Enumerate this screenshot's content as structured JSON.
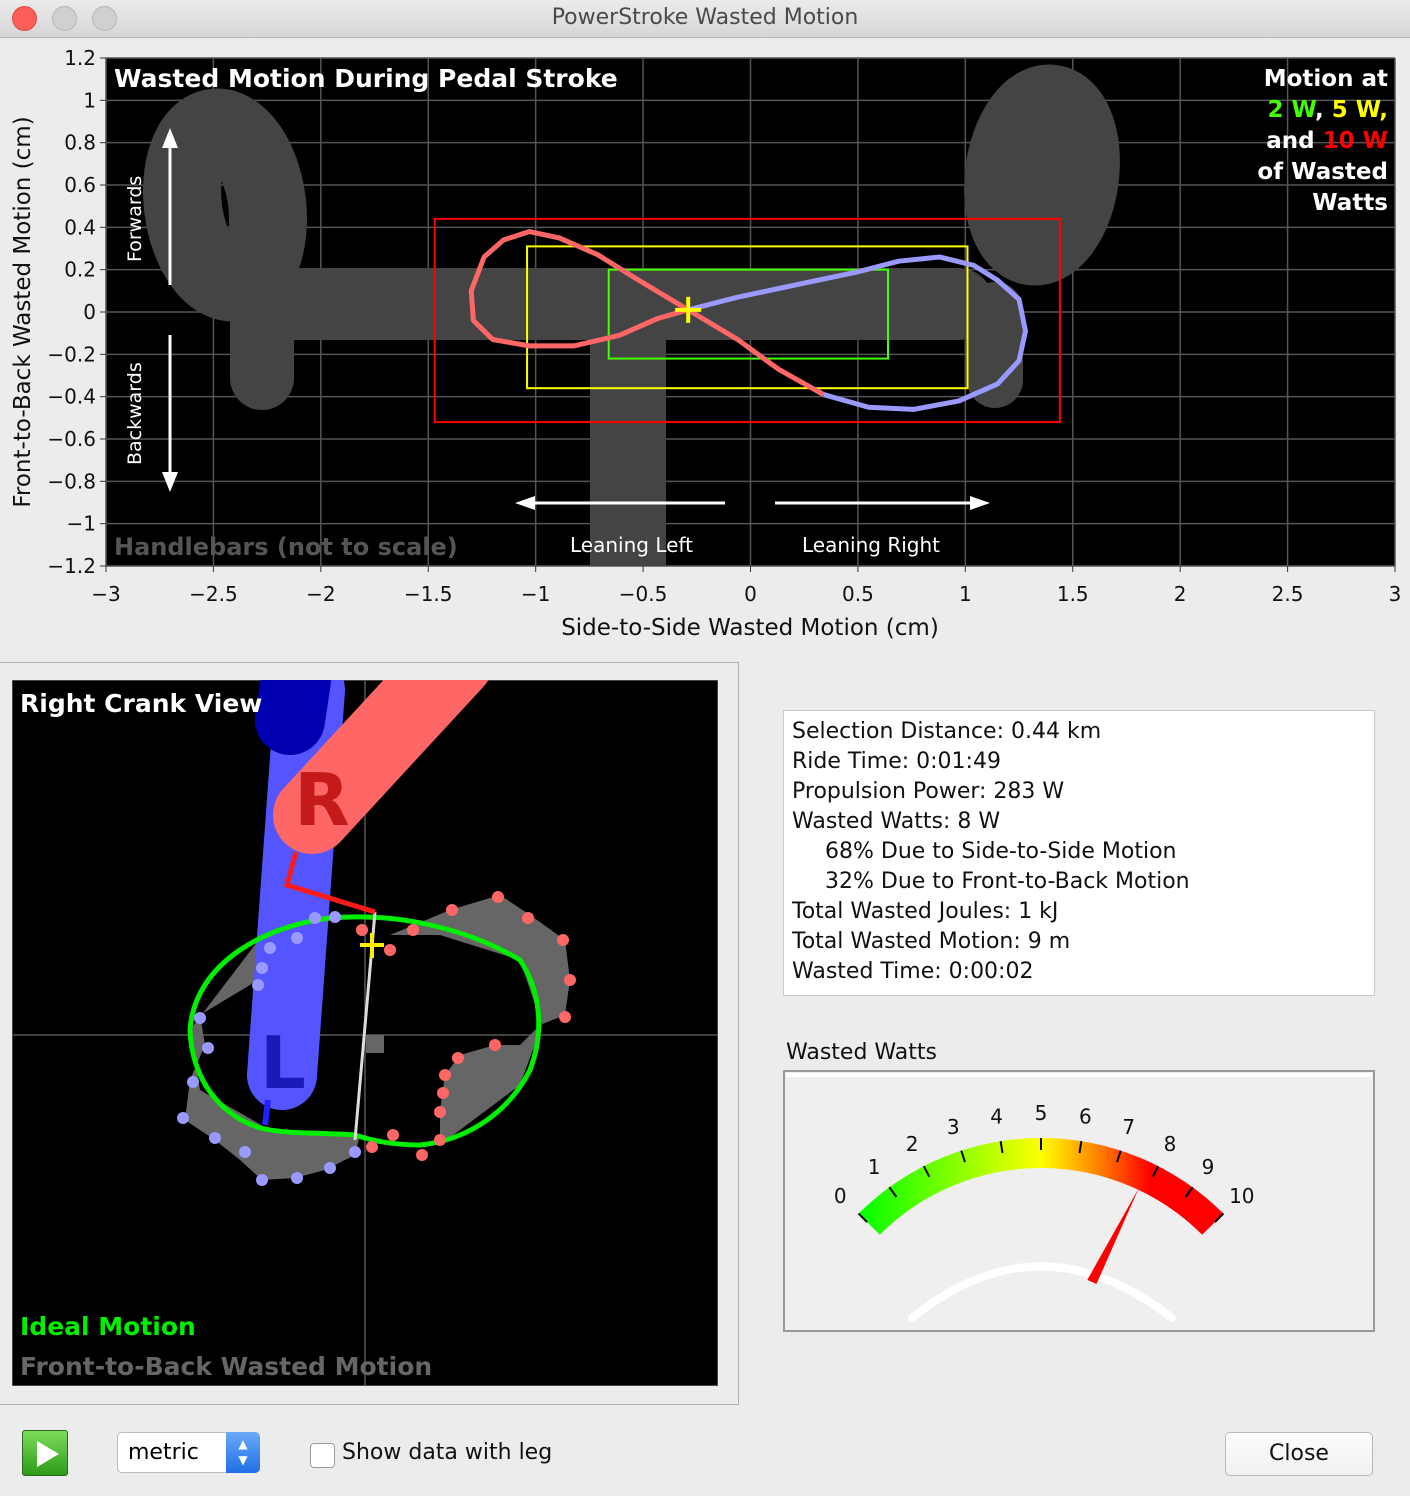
{
  "window": {
    "title": "PowerStroke Wasted Motion"
  },
  "colors": {
    "red": "#ff0000",
    "yellow": "#ffff00",
    "green": "#44ff00",
    "trace_red": "#ff6666",
    "trace_blue": "#9999ff",
    "handlebar": "#444444",
    "ideal": "#00ee00"
  },
  "chart_data": [
    {
      "type": "line",
      "title": "Wasted Motion During Pedal Stroke",
      "xlabel": "Side-to-Side Wasted Motion (cm)",
      "ylabel": "Front-to-Back Wasted Motion (cm)",
      "xlim": [
        -3,
        3
      ],
      "ylim": [
        -1.2,
        1.2
      ],
      "xticks": [
        "-3",
        "-2.5",
        "-2",
        "-1.5",
        "-1",
        "-0.5",
        "0",
        "0.5",
        "1",
        "1.5",
        "2",
        "2.5",
        "3"
      ],
      "yticks": [
        "1.2",
        "1",
        "0.8",
        "0.6",
        "0.4",
        "0.2",
        "0",
        "-0.2",
        "-0.4",
        "-0.6",
        "-0.8",
        "-1",
        "-1.2"
      ],
      "grid": true,
      "legend": {
        "lines": [
          "Motion at",
          "of Wasted",
          "Watts"
        ],
        "w2": "2 W",
        "w5": "5 W,",
        "and": "and",
        "w10": "10 W",
        "comma": ","
      },
      "annotations": {
        "forwards": "Forwards",
        "backwards": "Backwards",
        "leaning_left": "Leaning Left",
        "leaning_right": "Leaning Right",
        "handlebars": "Handlebars (not to scale)"
      },
      "boxes": [
        {
          "watts": 10,
          "color": "#ff0000",
          "x": [
            -1.47,
            1.44
          ],
          "y": [
            -0.52,
            0.44
          ]
        },
        {
          "watts": 5,
          "color": "#ffff00",
          "x": [
            -1.04,
            1.01
          ],
          "y": [
            -0.36,
            0.31
          ]
        },
        {
          "watts": 2,
          "color": "#44ff00",
          "x": [
            -0.66,
            0.64
          ],
          "y": [
            -0.22,
            0.2
          ]
        }
      ],
      "series": [
        {
          "color": "#ff6666",
          "x": [
            0.34,
            0.13,
            -0.06,
            -0.29,
            -0.52,
            -0.71,
            -0.89,
            -1.03,
            -1.15,
            -1.24,
            -1.3,
            -1.29,
            -1.2,
            -1.03,
            -0.82,
            -0.61,
            -0.43,
            -0.29
          ],
          "y": [
            -0.39,
            -0.27,
            -0.13,
            0.01,
            0.15,
            0.27,
            0.35,
            0.38,
            0.34,
            0.26,
            0.1,
            -0.04,
            -0.13,
            -0.16,
            -0.16,
            -0.11,
            -0.03,
            0.01
          ]
        },
        {
          "color": "#9999ff",
          "x": [
            -0.29,
            -0.06,
            0.22,
            0.5,
            0.69,
            0.88,
            1.04,
            1.15,
            1.25,
            1.28,
            1.25,
            1.15,
            0.97,
            0.76,
            0.55,
            0.34
          ],
          "y": [
            0.01,
            0.07,
            0.13,
            0.19,
            0.24,
            0.26,
            0.22,
            0.15,
            0.06,
            -0.09,
            -0.23,
            -0.34,
            -0.42,
            -0.46,
            -0.45,
            -0.39
          ]
        }
      ],
      "marker": {
        "x": -0.29,
        "y": 0.01,
        "color": "#ffff00"
      }
    },
    {
      "type": "gauge",
      "title": "Wasted Watts",
      "min": 0,
      "max": 10,
      "ticks": [
        "0",
        "1",
        "2",
        "3",
        "4",
        "5",
        "6",
        "7",
        "8",
        "9",
        "10"
      ],
      "value": 7.8
    }
  ],
  "crank_view": {
    "title": "Right Crank View",
    "right_label": "R",
    "left_label": "L",
    "legend_ideal": "Ideal Motion",
    "legend_wasted": "Front-to-Back Wasted Motion"
  },
  "stats": {
    "lines": [
      "Selection Distance: 0.44 km",
      "Ride Time: 0:01:49",
      "Propulsion Power: 283 W",
      "Wasted Watts: 8 W"
    ],
    "indented": [
      "68% Due to Side-to-Side Motion",
      "32% Due to Front-to-Back Motion"
    ],
    "lines2": [
      "Total Wasted Joules: 1 kJ",
      "Total Wasted Motion: 9 m",
      "Wasted Time: 0:00:02"
    ]
  },
  "controls": {
    "units_value": "metric",
    "show_leg_label": "Show data with leg",
    "show_leg_checked": false,
    "close_label": "Close"
  }
}
